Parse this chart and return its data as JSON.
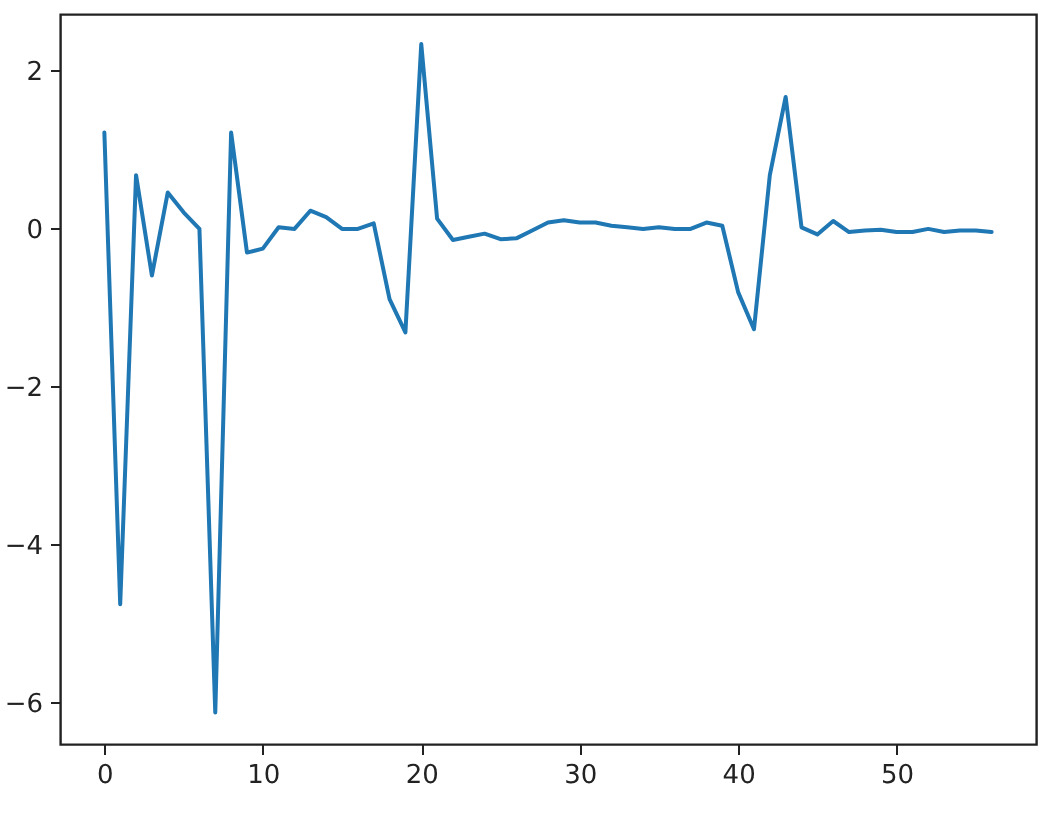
{
  "chart_data": {
    "type": "line",
    "color": "#1f77b4",
    "x": [
      0,
      1,
      2,
      3,
      4,
      5,
      6,
      7,
      8,
      9,
      10,
      11,
      12,
      13,
      14,
      15,
      16,
      17,
      18,
      19,
      20,
      21,
      22,
      23,
      24,
      25,
      26,
      27,
      28,
      29,
      30,
      31,
      32,
      33,
      34,
      35,
      36,
      37,
      38,
      39,
      40,
      41,
      42,
      43,
      44,
      45,
      46,
      47,
      48,
      49,
      50,
      51,
      52,
      53,
      54,
      55,
      56
    ],
    "values": [
      1.22,
      -4.75,
      0.68,
      -0.59,
      0.46,
      0.21,
      0.0,
      -6.12,
      1.22,
      -0.3,
      -0.25,
      0.02,
      0.0,
      0.23,
      0.15,
      0.0,
      0.0,
      0.07,
      -0.89,
      -1.31,
      2.34,
      0.13,
      -0.14,
      -0.1,
      -0.06,
      -0.13,
      -0.12,
      -0.02,
      0.08,
      0.11,
      0.08,
      0.08,
      0.04,
      0.02,
      0.0,
      0.02,
      0.0,
      0.0,
      0.08,
      0.04,
      -0.8,
      -1.27,
      0.68,
      1.67,
      0.02,
      -0.07,
      0.1,
      -0.04,
      -0.02,
      -0.01,
      -0.04,
      -0.04,
      0.0,
      -0.04,
      -0.02,
      -0.02,
      -0.04
    ],
    "xlim": [
      -2.8,
      58.8
    ],
    "ylim": [
      -6.52,
      2.72
    ],
    "xticks": [
      0,
      10,
      20,
      30,
      40,
      50
    ],
    "yticks": [
      -6,
      -4,
      -2,
      0,
      2
    ]
  }
}
